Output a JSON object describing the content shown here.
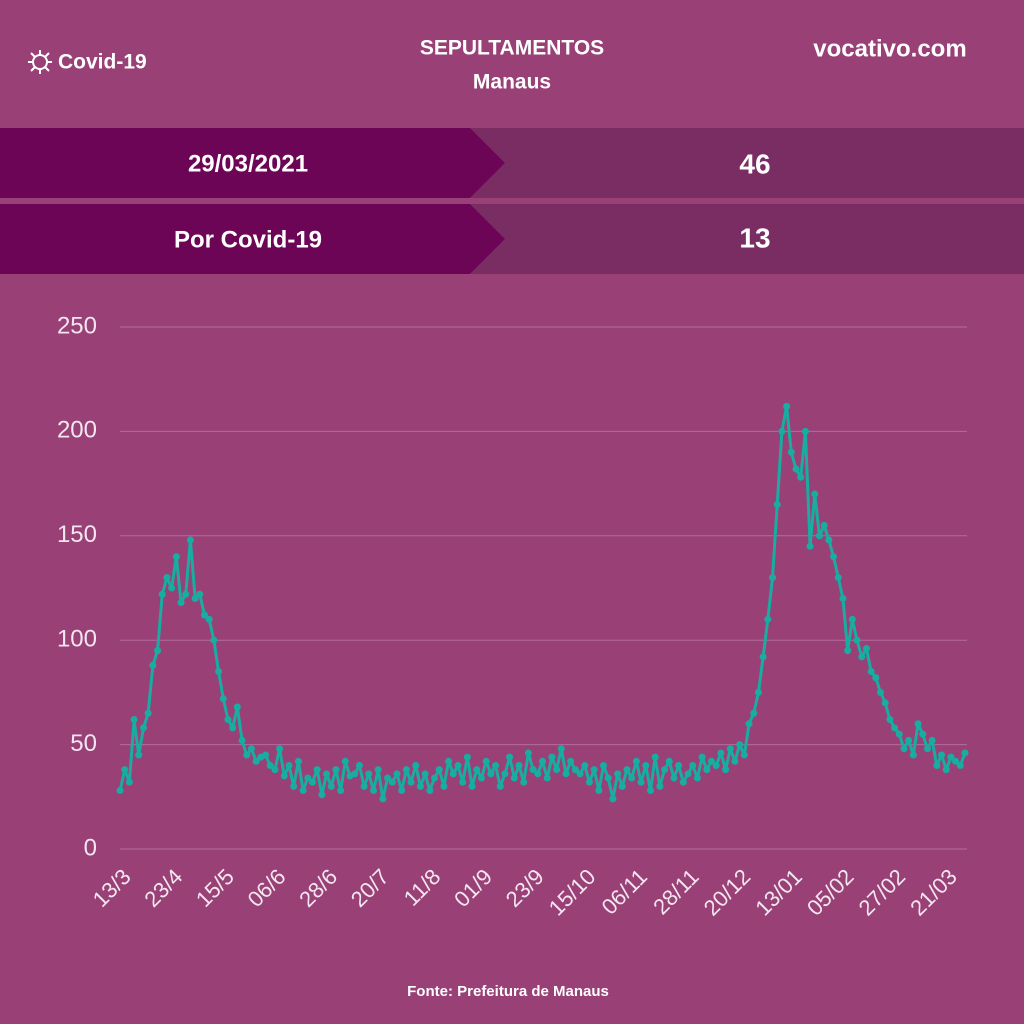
{
  "header": {
    "tag": "Covid-19",
    "title": "SEPULTAMENTOS",
    "subtitle": "Manaus",
    "brand": "vocativo.com"
  },
  "stats": {
    "rows": [
      [
        "29/03/2021",
        46
      ],
      [
        "Por Covid-19",
        13
      ]
    ]
  },
  "chart_data": {
    "type": "line",
    "color": "#17ada1",
    "grid": true,
    "ylim": [
      0,
      250
    ],
    "yticks": [
      0,
      50,
      100,
      150,
      200,
      250
    ],
    "categories": [
      "13/3",
      null,
      null,
      null,
      null,
      null,
      null,
      null,
      null,
      null,
      null,
      "23/4",
      null,
      null,
      null,
      null,
      null,
      null,
      null,
      null,
      null,
      null,
      "15/5",
      null,
      null,
      null,
      null,
      null,
      null,
      null,
      null,
      null,
      null,
      "06/6",
      null,
      null,
      null,
      null,
      null,
      null,
      null,
      null,
      null,
      null,
      "28/6",
      null,
      null,
      null,
      null,
      null,
      null,
      null,
      null,
      null,
      null,
      "20/7",
      null,
      null,
      null,
      null,
      null,
      null,
      null,
      null,
      null,
      null,
      "11/8",
      null,
      null,
      null,
      null,
      null,
      null,
      null,
      null,
      null,
      null,
      "01/9",
      null,
      null,
      null,
      null,
      null,
      null,
      null,
      null,
      null,
      null,
      "23/9",
      null,
      null,
      null,
      null,
      null,
      null,
      null,
      null,
      null,
      null,
      "15/10",
      null,
      null,
      null,
      null,
      null,
      null,
      null,
      null,
      null,
      null,
      "06/11",
      null,
      null,
      null,
      null,
      null,
      null,
      null,
      null,
      null,
      null,
      "28/11",
      null,
      null,
      null,
      null,
      null,
      null,
      null,
      null,
      null,
      null,
      "20/12",
      null,
      null,
      null,
      null,
      null,
      null,
      null,
      null,
      null,
      null,
      "13/01",
      null,
      null,
      null,
      null,
      null,
      null,
      null,
      null,
      null,
      null,
      "05/02",
      null,
      null,
      null,
      null,
      null,
      null,
      null,
      null,
      null,
      null,
      "27/02",
      null,
      null,
      null,
      null,
      null,
      null,
      null,
      null,
      null,
      null,
      "21/03",
      null,
      null,
      null,
      null
    ],
    "values": [
      28,
      38,
      32,
      62,
      45,
      58,
      65,
      88,
      95,
      122,
      130,
      125,
      140,
      118,
      122,
      148,
      120,
      122,
      112,
      110,
      100,
      85,
      72,
      62,
      58,
      68,
      52,
      45,
      48,
      42,
      44,
      45,
      40,
      38,
      48,
      35,
      40,
      30,
      42,
      28,
      34,
      32,
      38,
      26,
      36,
      30,
      38,
      28,
      42,
      35,
      36,
      40,
      30,
      36,
      28,
      38,
      24,
      34,
      32,
      36,
      28,
      38,
      32,
      40,
      30,
      36,
      28,
      34,
      38,
      30,
      42,
      36,
      40,
      32,
      44,
      30,
      38,
      34,
      42,
      36,
      40,
      30,
      36,
      44,
      34,
      40,
      32,
      46,
      38,
      36,
      42,
      34,
      44,
      38,
      48,
      36,
      42,
      38,
      36,
      40,
      32,
      38,
      28,
      40,
      34,
      24,
      36,
      30,
      38,
      34,
      42,
      32,
      40,
      28,
      44,
      30,
      38,
      42,
      34,
      40,
      32,
      36,
      40,
      34,
      44,
      38,
      42,
      40,
      46,
      38,
      48,
      42,
      50,
      45,
      60,
      65,
      75,
      92,
      110,
      130,
      165,
      200,
      212,
      190,
      182,
      178,
      200,
      145,
      170,
      150,
      155,
      148,
      140,
      130,
      120,
      95,
      110,
      100,
      92,
      96,
      85,
      82,
      75,
      70,
      62,
      58,
      55,
      48,
      52,
      45,
      60,
      55,
      48,
      52,
      40,
      45,
      38,
      44,
      42,
      40,
      46
    ]
  },
  "footer": {
    "source": "Fonte:  Prefeitura de Manaus"
  }
}
